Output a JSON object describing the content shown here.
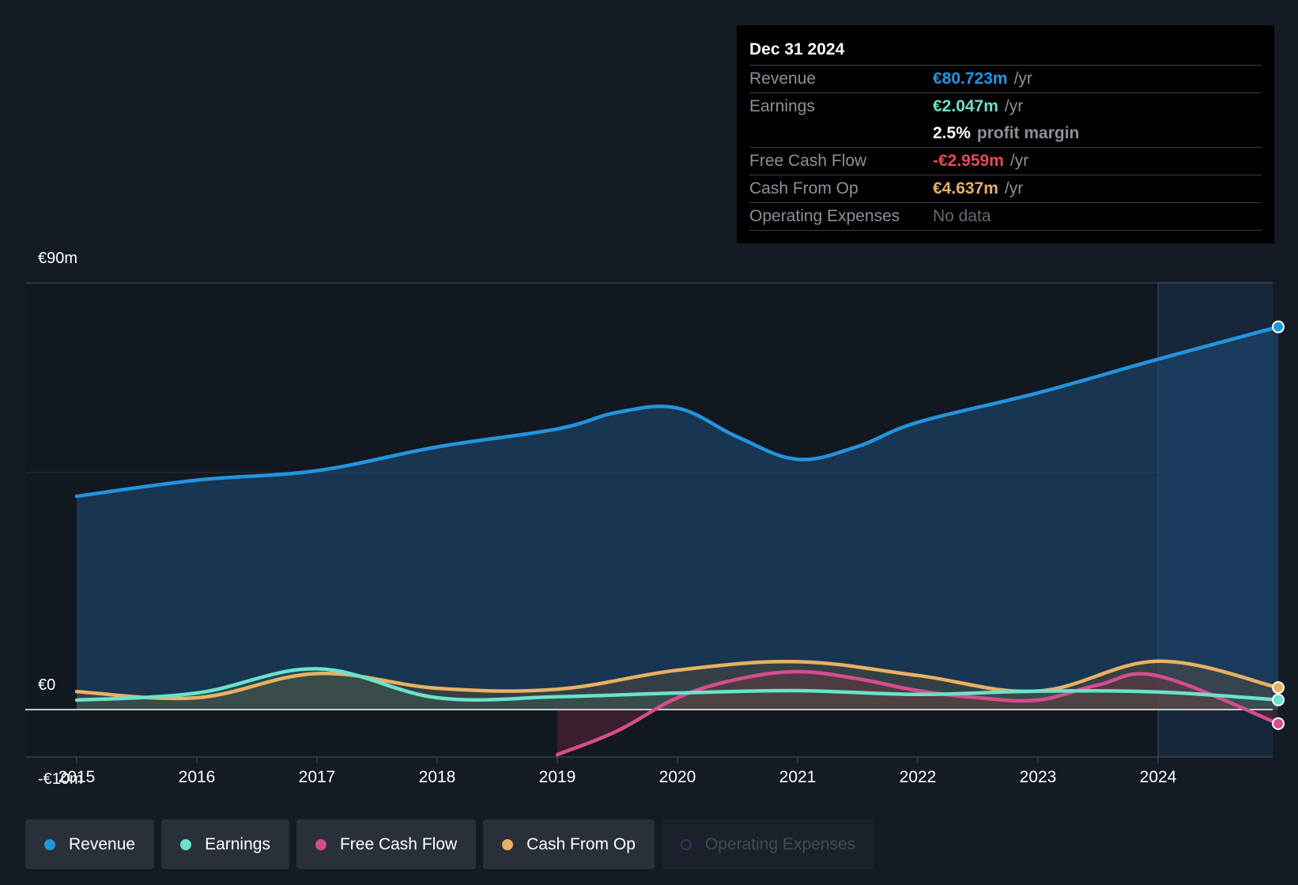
{
  "chart_data": {
    "type": "area",
    "y_axis": {
      "ticks": [
        "€90m",
        "€0",
        "-€10m"
      ],
      "ylim": [
        -10,
        90
      ],
      "grid": true
    },
    "x_axis": {
      "ticks": [
        "2015",
        "2016",
        "2017",
        "2018",
        "2019",
        "2020",
        "2021",
        "2022",
        "2023",
        "2024"
      ],
      "xlim": [
        2014.6,
        2025.0
      ]
    },
    "highlight_start": 2024.0,
    "series": [
      {
        "name": "Revenue",
        "color": "#2394df",
        "fill": true,
        "x": [
          2015.0,
          2016.0,
          2017.0,
          2018.0,
          2019.0,
          2019.5,
          2020.0,
          2020.5,
          2021.0,
          2021.5,
          2022.0,
          2023.0,
          2024.0,
          2025.0
        ],
        "y": [
          45.0,
          48.4,
          50.4,
          55.4,
          59.2,
          62.7,
          63.6,
          57.5,
          52.8,
          55.5,
          60.6,
          66.8,
          73.9,
          80.723
        ]
      },
      {
        "name": "Earnings",
        "color": "#6be2cc",
        "fill": true,
        "x": [
          2015.0,
          2016.0,
          2017.0,
          2018.0,
          2019.0,
          2020.0,
          2021.0,
          2022.0,
          2023.0,
          2024.0,
          2025.0
        ],
        "y": [
          2.0,
          3.5,
          8.6,
          2.5,
          2.7,
          3.5,
          4.0,
          3.2,
          3.9,
          3.7,
          2.047
        ]
      },
      {
        "name": "Free Cash Flow",
        "color": "#d64d8f",
        "fill": true,
        "x": [
          2019.0,
          2019.5,
          2020.0,
          2020.5,
          2021.0,
          2021.5,
          2022.0,
          2022.5,
          2023.0,
          2023.5,
          2024.0,
          2025.0
        ],
        "y": [
          -9.5,
          -4.5,
          2.5,
          6.4,
          8.0,
          6.5,
          4.0,
          2.5,
          2.0,
          5.2,
          7.1,
          -2.959
        ]
      },
      {
        "name": "Cash From Op",
        "color": "#e9b163",
        "fill": true,
        "x": [
          2015.0,
          2016.0,
          2017.0,
          2018.0,
          2019.0,
          2020.0,
          2021.0,
          2022.0,
          2023.0,
          2024.0,
          2025.0
        ],
        "y": [
          3.8,
          2.5,
          7.6,
          4.5,
          4.3,
          8.3,
          10.1,
          7.2,
          3.9,
          10.2,
          4.637
        ]
      }
    ]
  },
  "tooltip": {
    "date": "Dec 31 2024",
    "revenue_label": "Revenue",
    "revenue_value": "€80.723m",
    "revenue_unit": "/yr",
    "earnings_label": "Earnings",
    "earnings_value": "€2.047m",
    "earnings_unit": "/yr",
    "margin_value": "2.5%",
    "margin_text": "profit margin",
    "fcf_label": "Free Cash Flow",
    "fcf_value": "-€2.959m",
    "fcf_unit": "/yr",
    "cfo_label": "Cash From Op",
    "cfo_value": "€4.637m",
    "cfo_unit": "/yr",
    "opex_label": "Operating Expenses",
    "opex_value": "No data"
  },
  "legend": [
    {
      "label": "Revenue",
      "color": "#2394df",
      "enabled": true
    },
    {
      "label": "Earnings",
      "color": "#6be2cc",
      "enabled": true
    },
    {
      "label": "Free Cash Flow",
      "color": "#d64d8f",
      "enabled": true
    },
    {
      "label": "Cash From Op",
      "color": "#e9b163",
      "enabled": true
    },
    {
      "label": "Operating Expenses",
      "color": "#4b2a66",
      "enabled": false
    }
  ]
}
